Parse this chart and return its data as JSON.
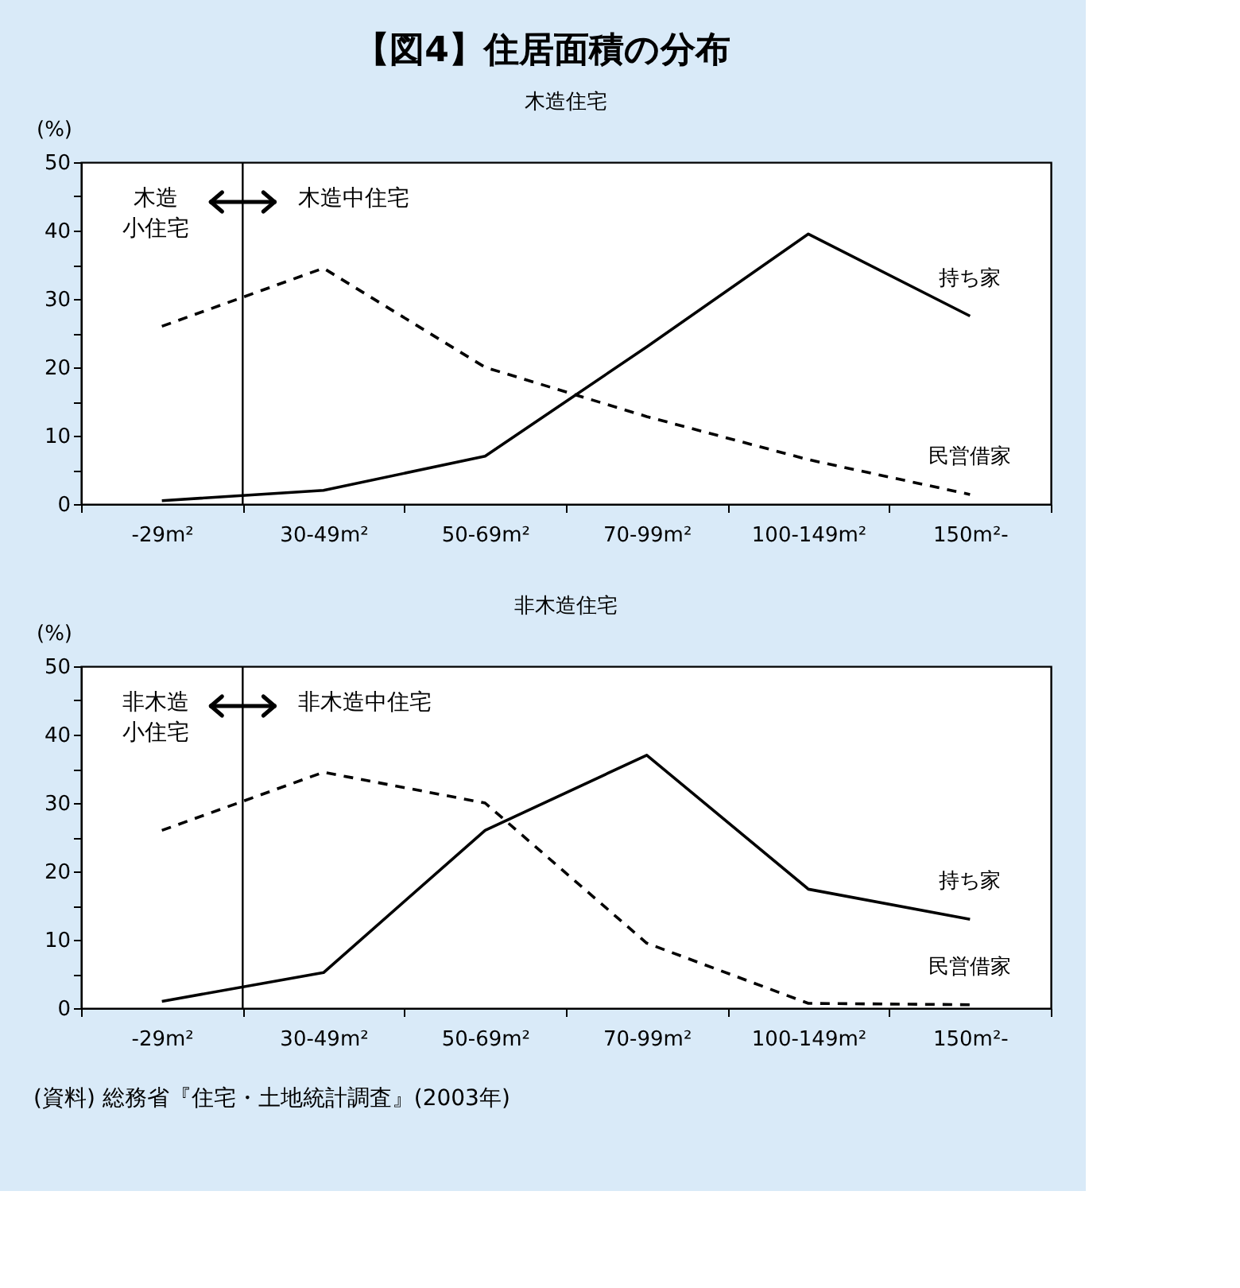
{
  "chart_data": [
    {
      "type": "line",
      "title": "【図4】住居面積の分布",
      "subtitle": "木造住宅",
      "ylabel": "(%)",
      "categories": [
        "-29m²",
        "30-49m²",
        "50-69m²",
        "70-99m²",
        "100-149m²",
        "150m²-"
      ],
      "series": [
        {
          "name": "持ち家",
          "color": "#000000",
          "line_style": "solid",
          "values": [
            0.5,
            2,
            7,
            23,
            39.5,
            27.5
          ]
        },
        {
          "name": "民営借家",
          "color": "#000000",
          "line_style": "dashed",
          "values": [
            26,
            34.5,
            20,
            12.8,
            6.5,
            1.4
          ]
        }
      ],
      "ylim": [
        0,
        50
      ],
      "yticks": [
        0,
        {
          "value": 5,
          "label": null
        },
        10,
        {
          "value": 15,
          "label": null
        },
        20,
        {
          "value": 25,
          "label": null
        },
        30,
        {
          "value": 35,
          "label": null
        },
        40,
        {
          "value": 45,
          "label": null
        },
        50
      ],
      "annotations": [
        "木造",
        "小住宅",
        "木造中住宅"
      ]
    },
    {
      "type": "line",
      "subtitle": "非木造住宅",
      "ylabel": "(%)",
      "categories": [
        "-29m²",
        "30-49m²",
        "50-69m²",
        "70-99m²",
        "100-149m²",
        "150m²-"
      ],
      "series": [
        {
          "name": "持ち家",
          "color": "#000000",
          "line_style": "solid",
          "values": [
            1,
            5.2,
            26,
            37,
            17.4,
            13
          ]
        },
        {
          "name": "民営借家",
          "color": "#000000",
          "line_style": "dashed",
          "values": [
            26,
            34.5,
            30,
            9.5,
            0.7,
            0.5
          ]
        }
      ],
      "ylim": [
        0,
        50
      ],
      "yticks": [
        0,
        {
          "value": 5,
          "label": null
        },
        10,
        {
          "value": 15,
          "label": null
        },
        20,
        {
          "value": 25,
          "label": null
        },
        30,
        {
          "value": 35,
          "label": null
        },
        40,
        {
          "value": 45,
          "label": null
        },
        50
      ],
      "annotations": [
        "非木造",
        "小住宅",
        "非木造中住宅",
        "(資料) 総務省『住宅・土地統計調査』(2003年)"
      ]
    }
  ]
}
